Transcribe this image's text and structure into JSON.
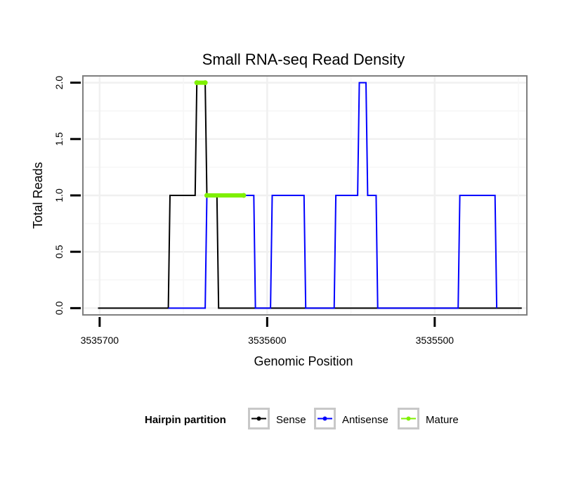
{
  "chart_data": {
    "type": "line",
    "title": "Small RNA-seq Read Density",
    "xlabel": "Genomic Position",
    "ylabel": "Total Reads",
    "x_reversed": true,
    "xlim": [
      3535710,
      3535445
    ],
    "ylim": [
      -0.06,
      2.06
    ],
    "x_ticks": [
      3535700,
      3535600,
      3535500
    ],
    "x_tick_labels": [
      "3535700",
      "3535600",
      "3535500"
    ],
    "y_ticks": [
      0,
      0.5,
      1,
      1.5,
      2
    ],
    "y_tick_labels": [
      "0.0",
      "0.5",
      "1.0",
      "1.5",
      "2.0"
    ],
    "grid": true,
    "series": [
      {
        "name": "Sense",
        "color": "#000000",
        "x": [
          3535701,
          3535659,
          3535658,
          3535643,
          3535642,
          3535637,
          3535636,
          3535630,
          3535629,
          3535608,
          3535607,
          3535448
        ],
        "y": [
          0,
          0,
          1,
          1,
          2,
          2,
          1,
          1,
          0,
          0,
          0,
          0
        ]
      },
      {
        "name": "Antisense",
        "color": "#0000ff",
        "x": [
          3535659,
          3535637,
          3535636,
          3535608,
          3535607,
          3535598,
          3535597,
          3535578,
          3535577,
          3535560,
          3535559,
          3535546,
          3535545,
          3535541,
          3535540,
          3535535,
          3535534,
          3535524,
          3535523,
          3535486,
          3535485,
          3535464,
          3535463
        ],
        "y": [
          0,
          0,
          1,
          1,
          0,
          0,
          1,
          1,
          0,
          0,
          1,
          1,
          2,
          2,
          1,
          1,
          0,
          0,
          0,
          0,
          1,
          1,
          0
        ]
      }
    ],
    "mature_segments": [
      {
        "x": [
          3535642,
          3535637
        ],
        "y": 2
      },
      {
        "x": [
          3535636,
          3535614
        ],
        "y": 1
      }
    ],
    "mature_color": "#7ff000",
    "legend": {
      "title": "Hairpin partition",
      "position": "bottom",
      "entries": [
        {
          "name": "Sense",
          "color": "#000000"
        },
        {
          "name": "Antisense",
          "color": "#0000ff"
        },
        {
          "name": "Mature",
          "color": "#7ff000"
        }
      ]
    }
  }
}
